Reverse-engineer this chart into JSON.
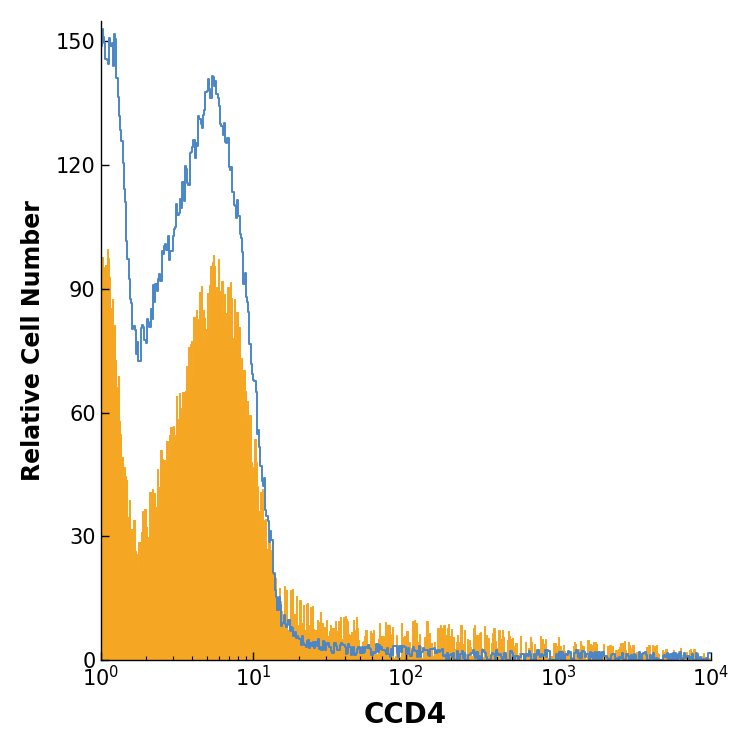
{
  "title": "",
  "xlabel": "CCD4",
  "ylabel": "Relative Cell Number",
  "xlim_log": [
    1,
    10000
  ],
  "ylim": [
    0,
    155
  ],
  "yticks": [
    0,
    30,
    60,
    90,
    120,
    150
  ],
  "blue_color": "#4a86c8",
  "orange_color": "#F5A623",
  "background_color": "#ffffff",
  "seed": 42
}
